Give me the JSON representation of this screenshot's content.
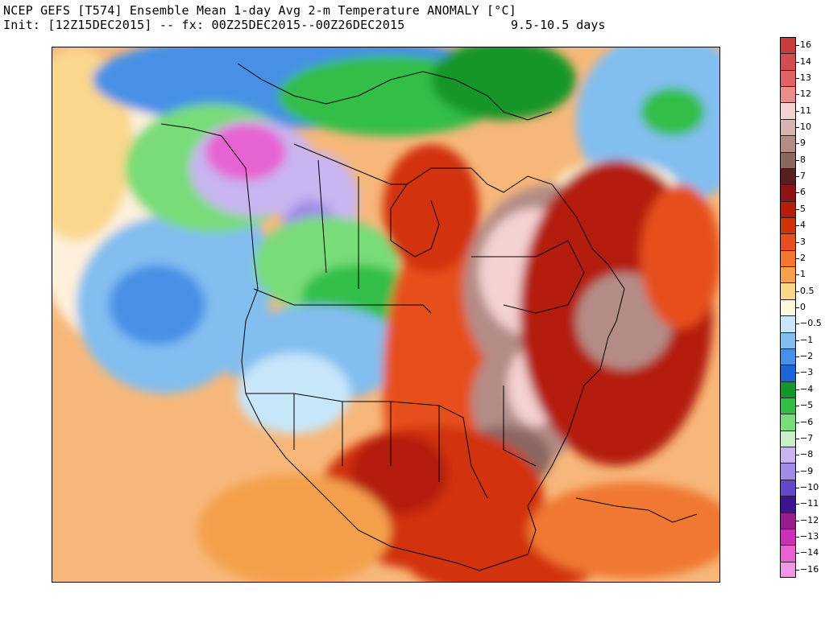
{
  "header": {
    "line1": "NCEP GEFS [T574] Ensemble Mean 1-day Avg 2-m Temperature ANOMALY [°C]",
    "line2_left": "Init: [12Z15DEC2015] -- fx: 00Z25DEC2015--00Z26DEC2015",
    "line2_right": "9.5-10.5 days"
  },
  "map": {
    "region": "North America",
    "features": [
      "coastlines",
      "state-boundaries",
      "province-boundaries"
    ]
  },
  "colorbar": {
    "unit": "°C",
    "levels": [
      {
        "label": "16",
        "color": "#c83c3c"
      },
      {
        "label": "14",
        "color": "#d24e4e"
      },
      {
        "label": "13",
        "color": "#dc6464"
      },
      {
        "label": "12",
        "color": "#e88c8c"
      },
      {
        "label": "11",
        "color": "#f4d2d2"
      },
      {
        "label": "10",
        "color": "#d8b4b0"
      },
      {
        "label": "9",
        "color": "#b48c86"
      },
      {
        "label": "8",
        "color": "#8c6660"
      },
      {
        "label": "7",
        "color": "#5a1e1e"
      },
      {
        "label": "6",
        "color": "#8c1414"
      },
      {
        "label": "5",
        "color": "#b41e0a"
      },
      {
        "label": "4",
        "color": "#d2320a"
      },
      {
        "label": "3",
        "color": "#e6501e"
      },
      {
        "label": "2",
        "color": "#f07832"
      },
      {
        "label": "1",
        "color": "#f4a04c"
      },
      {
        "label": "0.5",
        "color": "#fad78c"
      },
      {
        "label": "0",
        "color": "#fff8dc"
      },
      {
        "label": "−0.5",
        "color": "#c8e6fa"
      },
      {
        "label": "−1",
        "color": "#82bef0"
      },
      {
        "label": "−2",
        "color": "#4690e6"
      },
      {
        "label": "−3",
        "color": "#1e64d2"
      },
      {
        "label": "−4",
        "color": "#149628"
      },
      {
        "label": "−5",
        "color": "#32be46"
      },
      {
        "label": "−6",
        "color": "#78dc78"
      },
      {
        "label": "−7",
        "color": "#c8f0c8"
      },
      {
        "label": "−8",
        "color": "#c8b4f0"
      },
      {
        "label": "−9",
        "color": "#a08ce6"
      },
      {
        "label": "−10",
        "color": "#6446c8"
      },
      {
        "label": "−11",
        "color": "#3c148c"
      },
      {
        "label": "−12",
        "color": "#961e8c"
      },
      {
        "label": "−13",
        "color": "#c832b4"
      },
      {
        "label": "−14",
        "color": "#e664d2"
      },
      {
        "label": "−16",
        "color": "#f096e6"
      }
    ]
  }
}
